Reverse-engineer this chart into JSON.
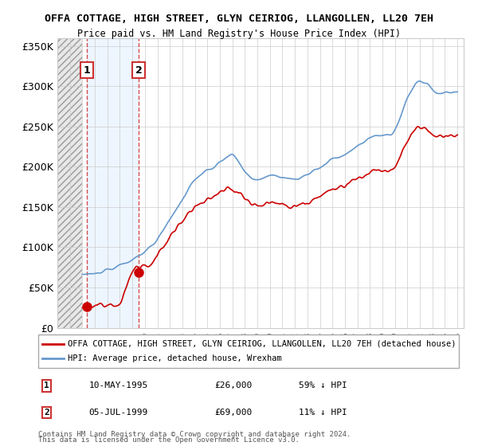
{
  "title": "OFFA COTTAGE, HIGH STREET, GLYN CEIRIOG, LLANGOLLEN, LL20 7EH",
  "subtitle": "Price paid vs. HM Land Registry's House Price Index (HPI)",
  "ylabel_ticks": [
    "£0",
    "£50K",
    "£100K",
    "£150K",
    "£200K",
    "£250K",
    "£300K",
    "£350K"
  ],
  "ylabel_values": [
    0,
    50000,
    100000,
    150000,
    200000,
    250000,
    300000,
    350000
  ],
  "ylim": [
    0,
    360000
  ],
  "xlim_start": 1993.0,
  "xlim_end": 2025.5,
  "transaction1": {
    "label": "1",
    "date_x": 1995.36,
    "price": 26000,
    "date_str": "10-MAY-1995",
    "price_str": "£26,000",
    "pct": "59% ↓ HPI"
  },
  "transaction2": {
    "label": "2",
    "date_x": 1999.51,
    "price": 69000,
    "date_str": "05-JUL-1999",
    "price_str": "£69,000",
    "pct": "11% ↓ HPI"
  },
  "legend_line1": "OFFA COTTAGE, HIGH STREET, GLYN CEIRIOG, LLANGOLLEN, LL20 7EH (detached house)",
  "legend_line2": "HPI: Average price, detached house, Wrexham",
  "footer1": "Contains HM Land Registry data © Crown copyright and database right 2024.",
  "footer2": "This data is licensed under the Open Government Licence v3.0.",
  "red_color": "#cc0000",
  "blue_color": "#6699cc",
  "hatch_color": "#aaaaaa",
  "shade_color": "#ddeeff",
  "box_color": "#cc3333"
}
